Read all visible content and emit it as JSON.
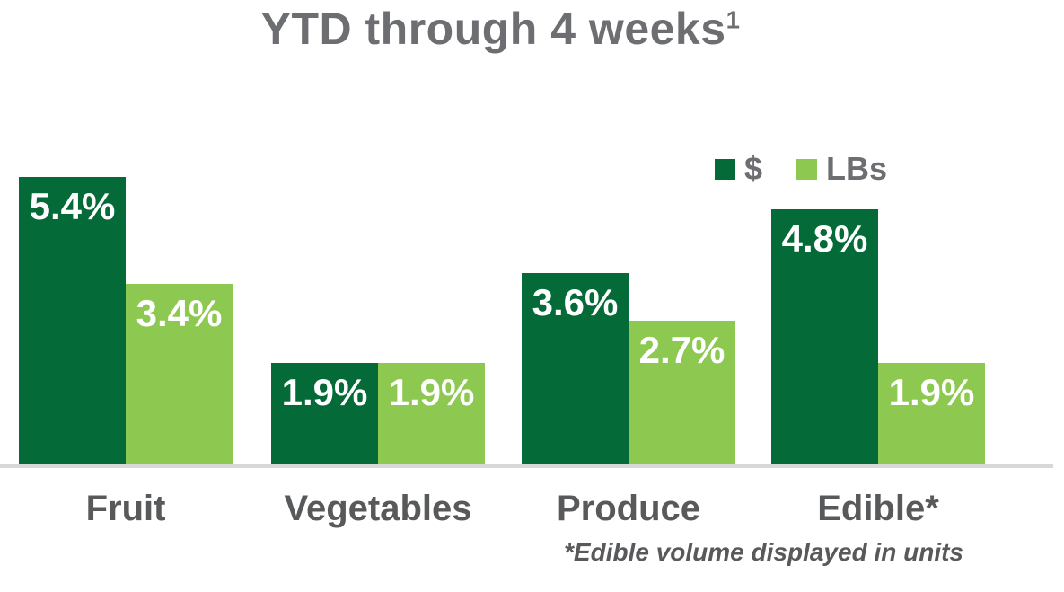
{
  "title": {
    "text": "YTD through 4 weeks",
    "superscript": "1"
  },
  "legend": {
    "items": [
      {
        "key": "dollars",
        "label": "$",
        "color": "#046A38"
      },
      {
        "key": "lbs",
        "label": "LBs",
        "color": "#8DC850"
      }
    ]
  },
  "footnote": "*Edible volume displayed in units",
  "colors": {
    "dark_green": "#046A38",
    "light_green": "#8DC850",
    "title_gray": "#6D6E71",
    "label_gray": "#58595B",
    "axis_gray": "#D8D8D8",
    "bar_value_text": "#FFFFFF"
  },
  "chart_data": {
    "type": "bar",
    "title": "YTD through 4 weeks¹",
    "categories": [
      "Fruit",
      "Vegetables",
      "Produce",
      "Edible*"
    ],
    "series": [
      {
        "key": "dollars",
        "name": "$",
        "color": "#046A38",
        "values": [
          5.4,
          1.9,
          3.6,
          4.8
        ]
      },
      {
        "key": "lbs",
        "name": "LBs",
        "color": "#8DC850",
        "values": [
          3.4,
          1.9,
          2.7,
          1.9
        ]
      }
    ],
    "value_format": "percent_one_decimal",
    "data_labels": true,
    "xlabel": "",
    "ylabel": "",
    "ylim": [
      0,
      5.4
    ],
    "grid": false,
    "y_axis_visible": false,
    "legend_position": "top-right",
    "annotations": [
      "*Edible volume displayed in units"
    ]
  }
}
